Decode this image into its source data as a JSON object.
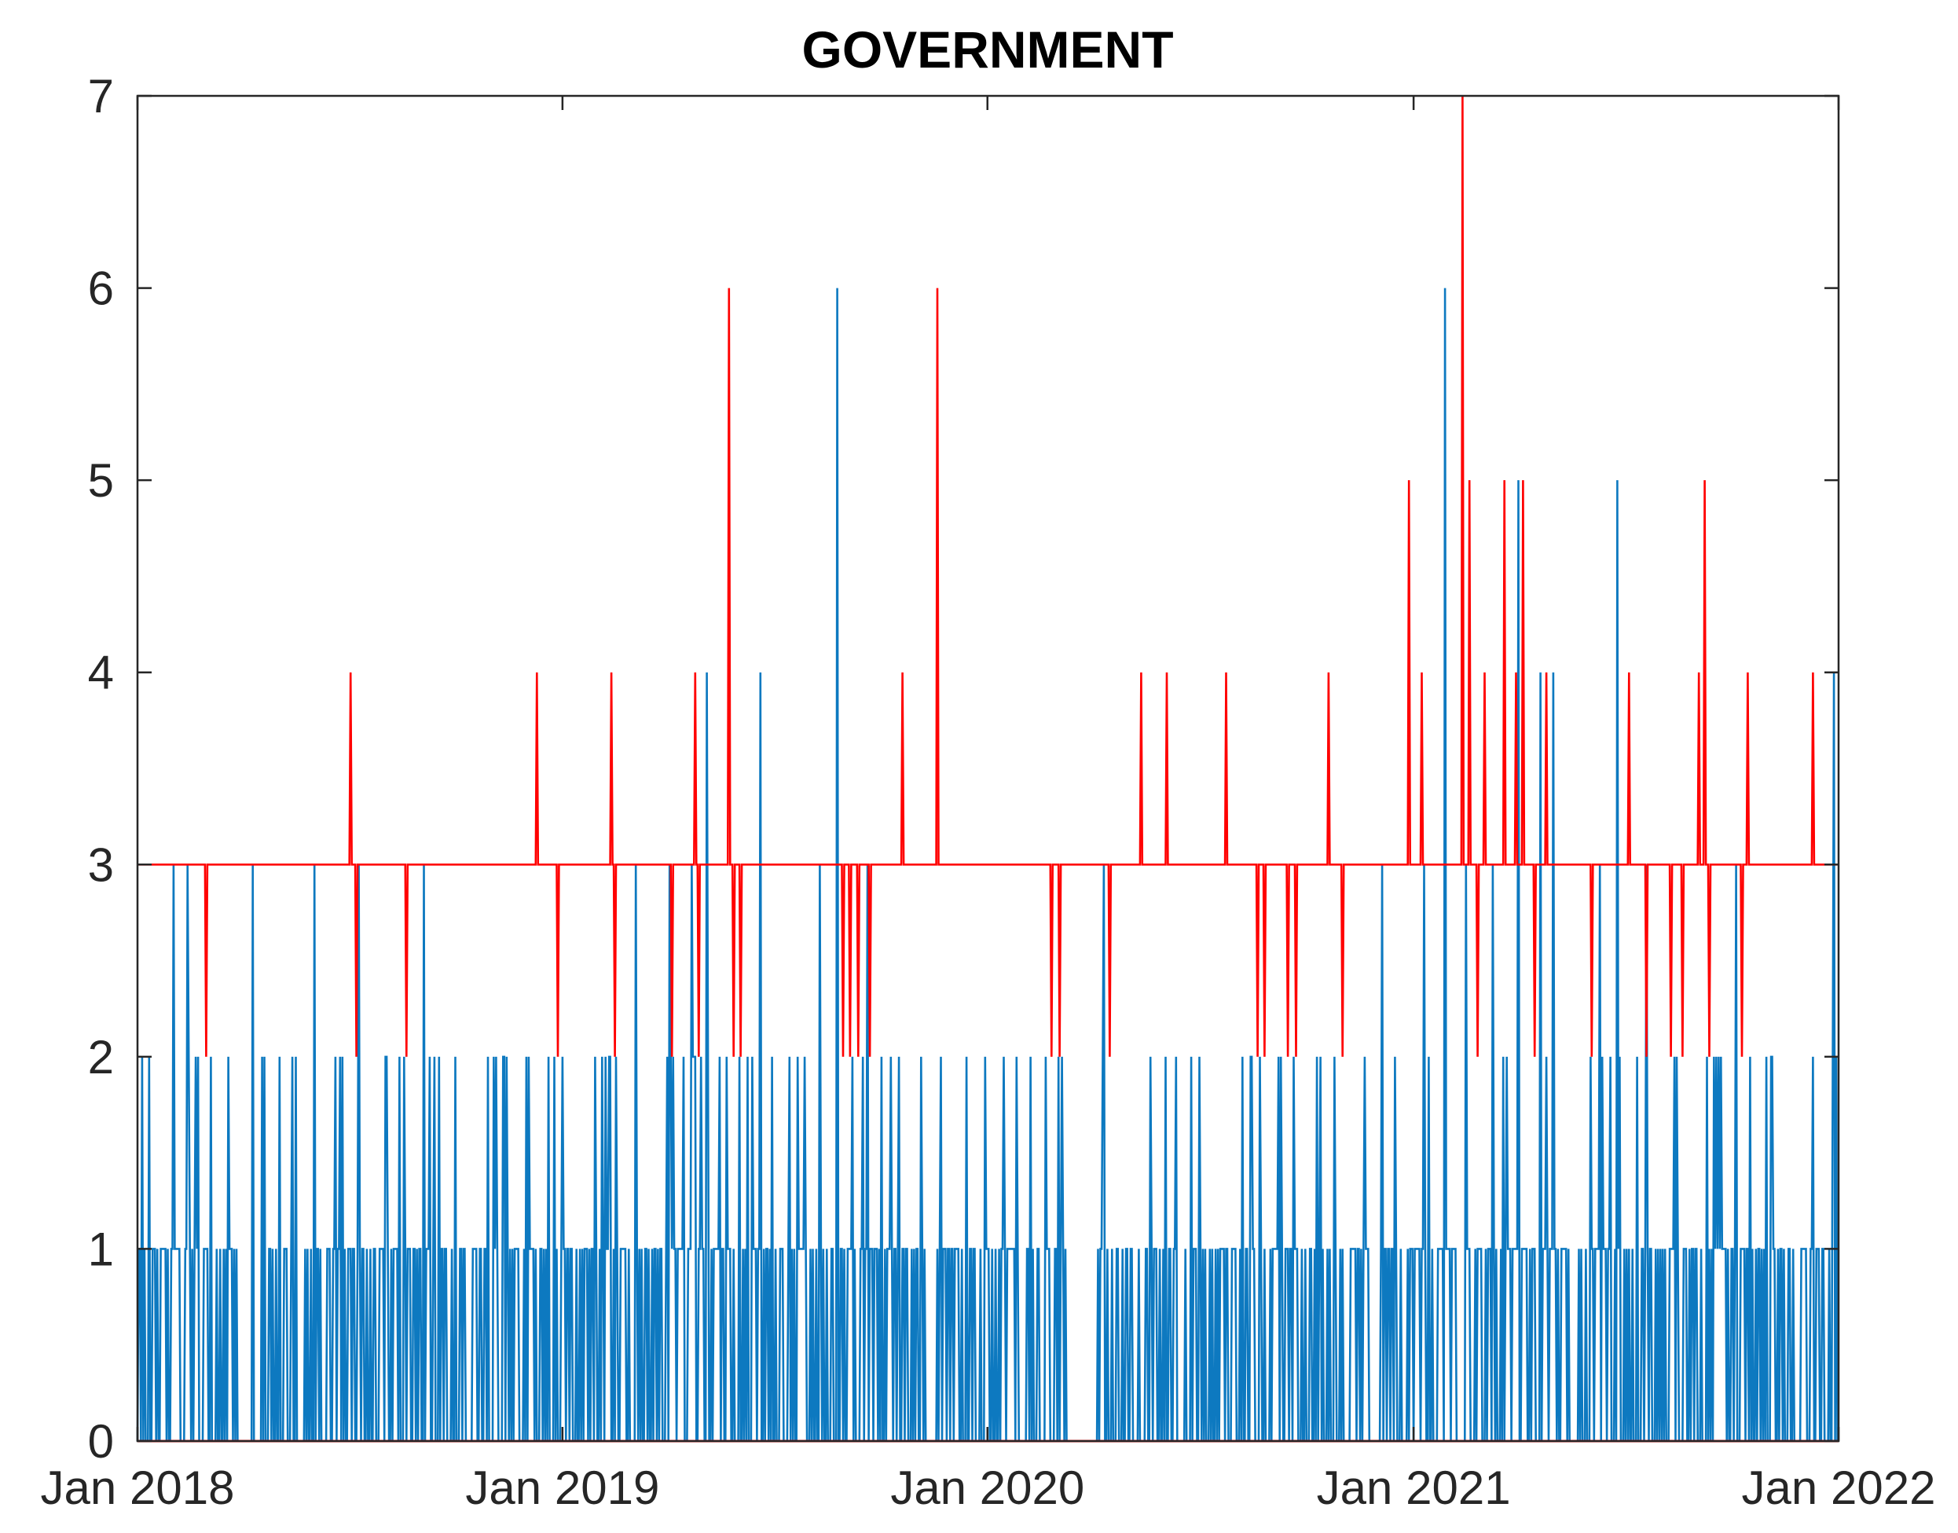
{
  "chart_data": {
    "type": "line",
    "title": "GOVERNMENT",
    "xlabel": "",
    "ylabel": "",
    "x_ticks": [
      "Jan 2018",
      "Jan 2019",
      "Jan 2020",
      "Jan 2021",
      "Jan 2022"
    ],
    "x_range": [
      "2018-01-01",
      "2022-01-01"
    ],
    "ylim": [
      0,
      7
    ],
    "y_ticks": [
      0,
      1,
      2,
      3,
      4,
      5,
      6,
      7
    ],
    "grid": false,
    "legend": "none",
    "series": [
      {
        "color": "#0072BD",
        "description": "daily count (dense spikes)",
        "points": [
          [
            "2018-01-05",
            2
          ],
          [
            "2018-02-01",
            3
          ],
          [
            "2018-02-13",
            3
          ],
          [
            "2018-02-20",
            2
          ],
          [
            "2018-03-20",
            2
          ],
          [
            "2018-04-10",
            3
          ],
          [
            "2018-05-03",
            2
          ],
          [
            "2018-06-02",
            3
          ],
          [
            "2018-06-20",
            2
          ],
          [
            "2018-07-10",
            3
          ],
          [
            "2018-08-02",
            2
          ],
          [
            "2018-09-04",
            3
          ],
          [
            "2018-10-01",
            2
          ],
          [
            "2018-11-05",
            2
          ],
          [
            "2018-12-03",
            2
          ],
          [
            "2018-12-20",
            2
          ],
          [
            "2019-02-10",
            2
          ],
          [
            "2019-03-05",
            3
          ],
          [
            "2019-04-03",
            3
          ],
          [
            "2019-04-22",
            3
          ],
          [
            "2019-05-05",
            4
          ],
          [
            "2019-06-20",
            4
          ],
          [
            "2019-07-15",
            2
          ],
          [
            "2019-08-10",
            3
          ],
          [
            "2019-08-25",
            6
          ],
          [
            "2019-09-20",
            3
          ],
          [
            "2019-10-10",
            2
          ],
          [
            "2019-11-05",
            2
          ],
          [
            "2020-01-15",
            2
          ],
          [
            "2020-02-20",
            2
          ],
          [
            "2020-04-10",
            3
          ],
          [
            "2020-05-20",
            2
          ],
          [
            "2020-07-01",
            2
          ],
          [
            "2020-08-15",
            2
          ],
          [
            "2020-09-20",
            2
          ],
          [
            "2020-10-25",
            2
          ],
          [
            "2020-11-20",
            2
          ],
          [
            "2020-12-05",
            3
          ],
          [
            "2021-01-10",
            3
          ],
          [
            "2021-01-28",
            6
          ],
          [
            "2021-02-15",
            3
          ],
          [
            "2021-03-10",
            3
          ],
          [
            "2021-04-01",
            5
          ],
          [
            "2021-04-20",
            4
          ],
          [
            "2021-05-01",
            4
          ],
          [
            "2021-06-10",
            3
          ],
          [
            "2021-06-25",
            5
          ],
          [
            "2021-07-20",
            3
          ],
          [
            "2021-08-15",
            2
          ],
          [
            "2021-09-10",
            2
          ],
          [
            "2021-10-05",
            3
          ],
          [
            "2021-11-05",
            2
          ],
          [
            "2021-12-10",
            2
          ],
          [
            "2021-12-28",
            4
          ]
        ]
      },
      {
        "color": "#FF0000",
        "description": "threshold line at 3 with spikes",
        "baseline": 3,
        "points": [
          [
            "2018-03-01",
            2
          ],
          [
            "2018-07-03",
            4
          ],
          [
            "2018-07-08",
            2
          ],
          [
            "2018-08-20",
            2
          ],
          [
            "2018-12-10",
            4
          ],
          [
            "2018-12-28",
            2
          ],
          [
            "2019-02-12",
            4
          ],
          [
            "2019-02-15",
            2
          ],
          [
            "2019-04-05",
            2
          ],
          [
            "2019-04-25",
            4
          ],
          [
            "2019-04-28",
            2
          ],
          [
            "2019-05-24",
            6
          ],
          [
            "2019-05-28",
            2
          ],
          [
            "2019-06-03",
            2
          ],
          [
            "2019-08-30",
            2
          ],
          [
            "2019-09-05",
            2
          ],
          [
            "2019-09-12",
            2
          ],
          [
            "2019-09-22",
            2
          ],
          [
            "2019-10-20",
            4
          ],
          [
            "2019-11-19",
            6
          ],
          [
            "2020-02-25",
            2
          ],
          [
            "2020-03-03",
            2
          ],
          [
            "2020-04-15",
            2
          ],
          [
            "2020-05-12",
            4
          ],
          [
            "2020-06-03",
            4
          ],
          [
            "2020-07-24",
            4
          ],
          [
            "2020-08-20",
            2
          ],
          [
            "2020-08-26",
            2
          ],
          [
            "2020-09-15",
            2
          ],
          [
            "2020-09-22",
            2
          ],
          [
            "2020-10-20",
            4
          ],
          [
            "2020-11-01",
            2
          ],
          [
            "2020-12-28",
            5
          ],
          [
            "2021-01-08",
            4
          ],
          [
            "2021-02-12",
            7
          ],
          [
            "2021-02-18",
            5
          ],
          [
            "2021-02-25",
            2
          ],
          [
            "2021-03-03",
            4
          ],
          [
            "2021-03-20",
            5
          ],
          [
            "2021-03-30",
            4
          ],
          [
            "2021-04-05",
            5
          ],
          [
            "2021-04-15",
            2
          ],
          [
            "2021-04-25",
            4
          ],
          [
            "2021-06-03",
            2
          ],
          [
            "2021-07-05",
            4
          ],
          [
            "2021-07-20",
            2
          ],
          [
            "2021-08-10",
            2
          ],
          [
            "2021-08-20",
            2
          ],
          [
            "2021-09-03",
            4
          ],
          [
            "2021-09-08",
            5
          ],
          [
            "2021-09-12",
            2
          ],
          [
            "2021-10-10",
            2
          ],
          [
            "2021-10-15",
            4
          ],
          [
            "2021-12-10",
            4
          ]
        ]
      }
    ]
  }
}
